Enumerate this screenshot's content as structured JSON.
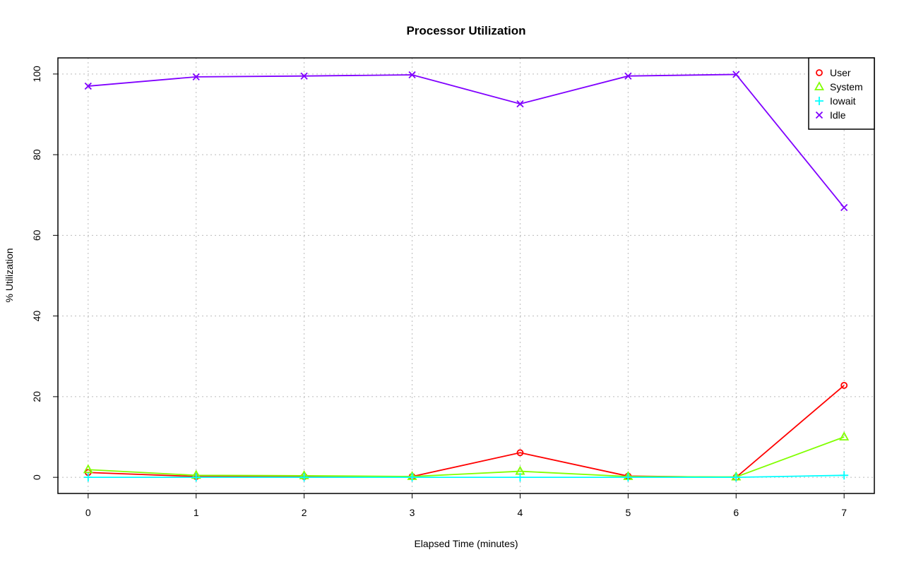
{
  "chart_data": {
    "type": "line",
    "title": "Processor Utilization",
    "xlabel": "Elapsed Time (minutes)",
    "ylabel": "% Utilization",
    "x": [
      0,
      1,
      2,
      3,
      4,
      5,
      6,
      7
    ],
    "xticks": [
      0,
      1,
      2,
      3,
      4,
      5,
      6,
      7
    ],
    "yticks": [
      0,
      20,
      40,
      60,
      80,
      100
    ],
    "xlim": [
      -0.28,
      7.28
    ],
    "ylim": [
      -4,
      104
    ],
    "grid": true,
    "legend_position": "top-right",
    "series": [
      {
        "name": "User",
        "color": "#FF0000",
        "marker": "circle",
        "values": [
          1.2,
          0.2,
          0.2,
          0.2,
          6.1,
          0.3,
          0.0,
          22.8
        ]
      },
      {
        "name": "System",
        "color": "#80FF00",
        "marker": "triangle",
        "values": [
          1.9,
          0.5,
          0.4,
          0.2,
          1.5,
          0.2,
          0.1,
          10.0
        ]
      },
      {
        "name": "Iowait",
        "color": "#00FFFF",
        "marker": "plus",
        "values": [
          0.0,
          0.0,
          0.0,
          0.0,
          0.0,
          0.0,
          0.0,
          0.5
        ]
      },
      {
        "name": "Idle",
        "color": "#8000FF",
        "marker": "cross",
        "values": [
          97.0,
          99.3,
          99.5,
          99.8,
          92.6,
          99.5,
          99.9,
          66.9
        ]
      }
    ]
  }
}
